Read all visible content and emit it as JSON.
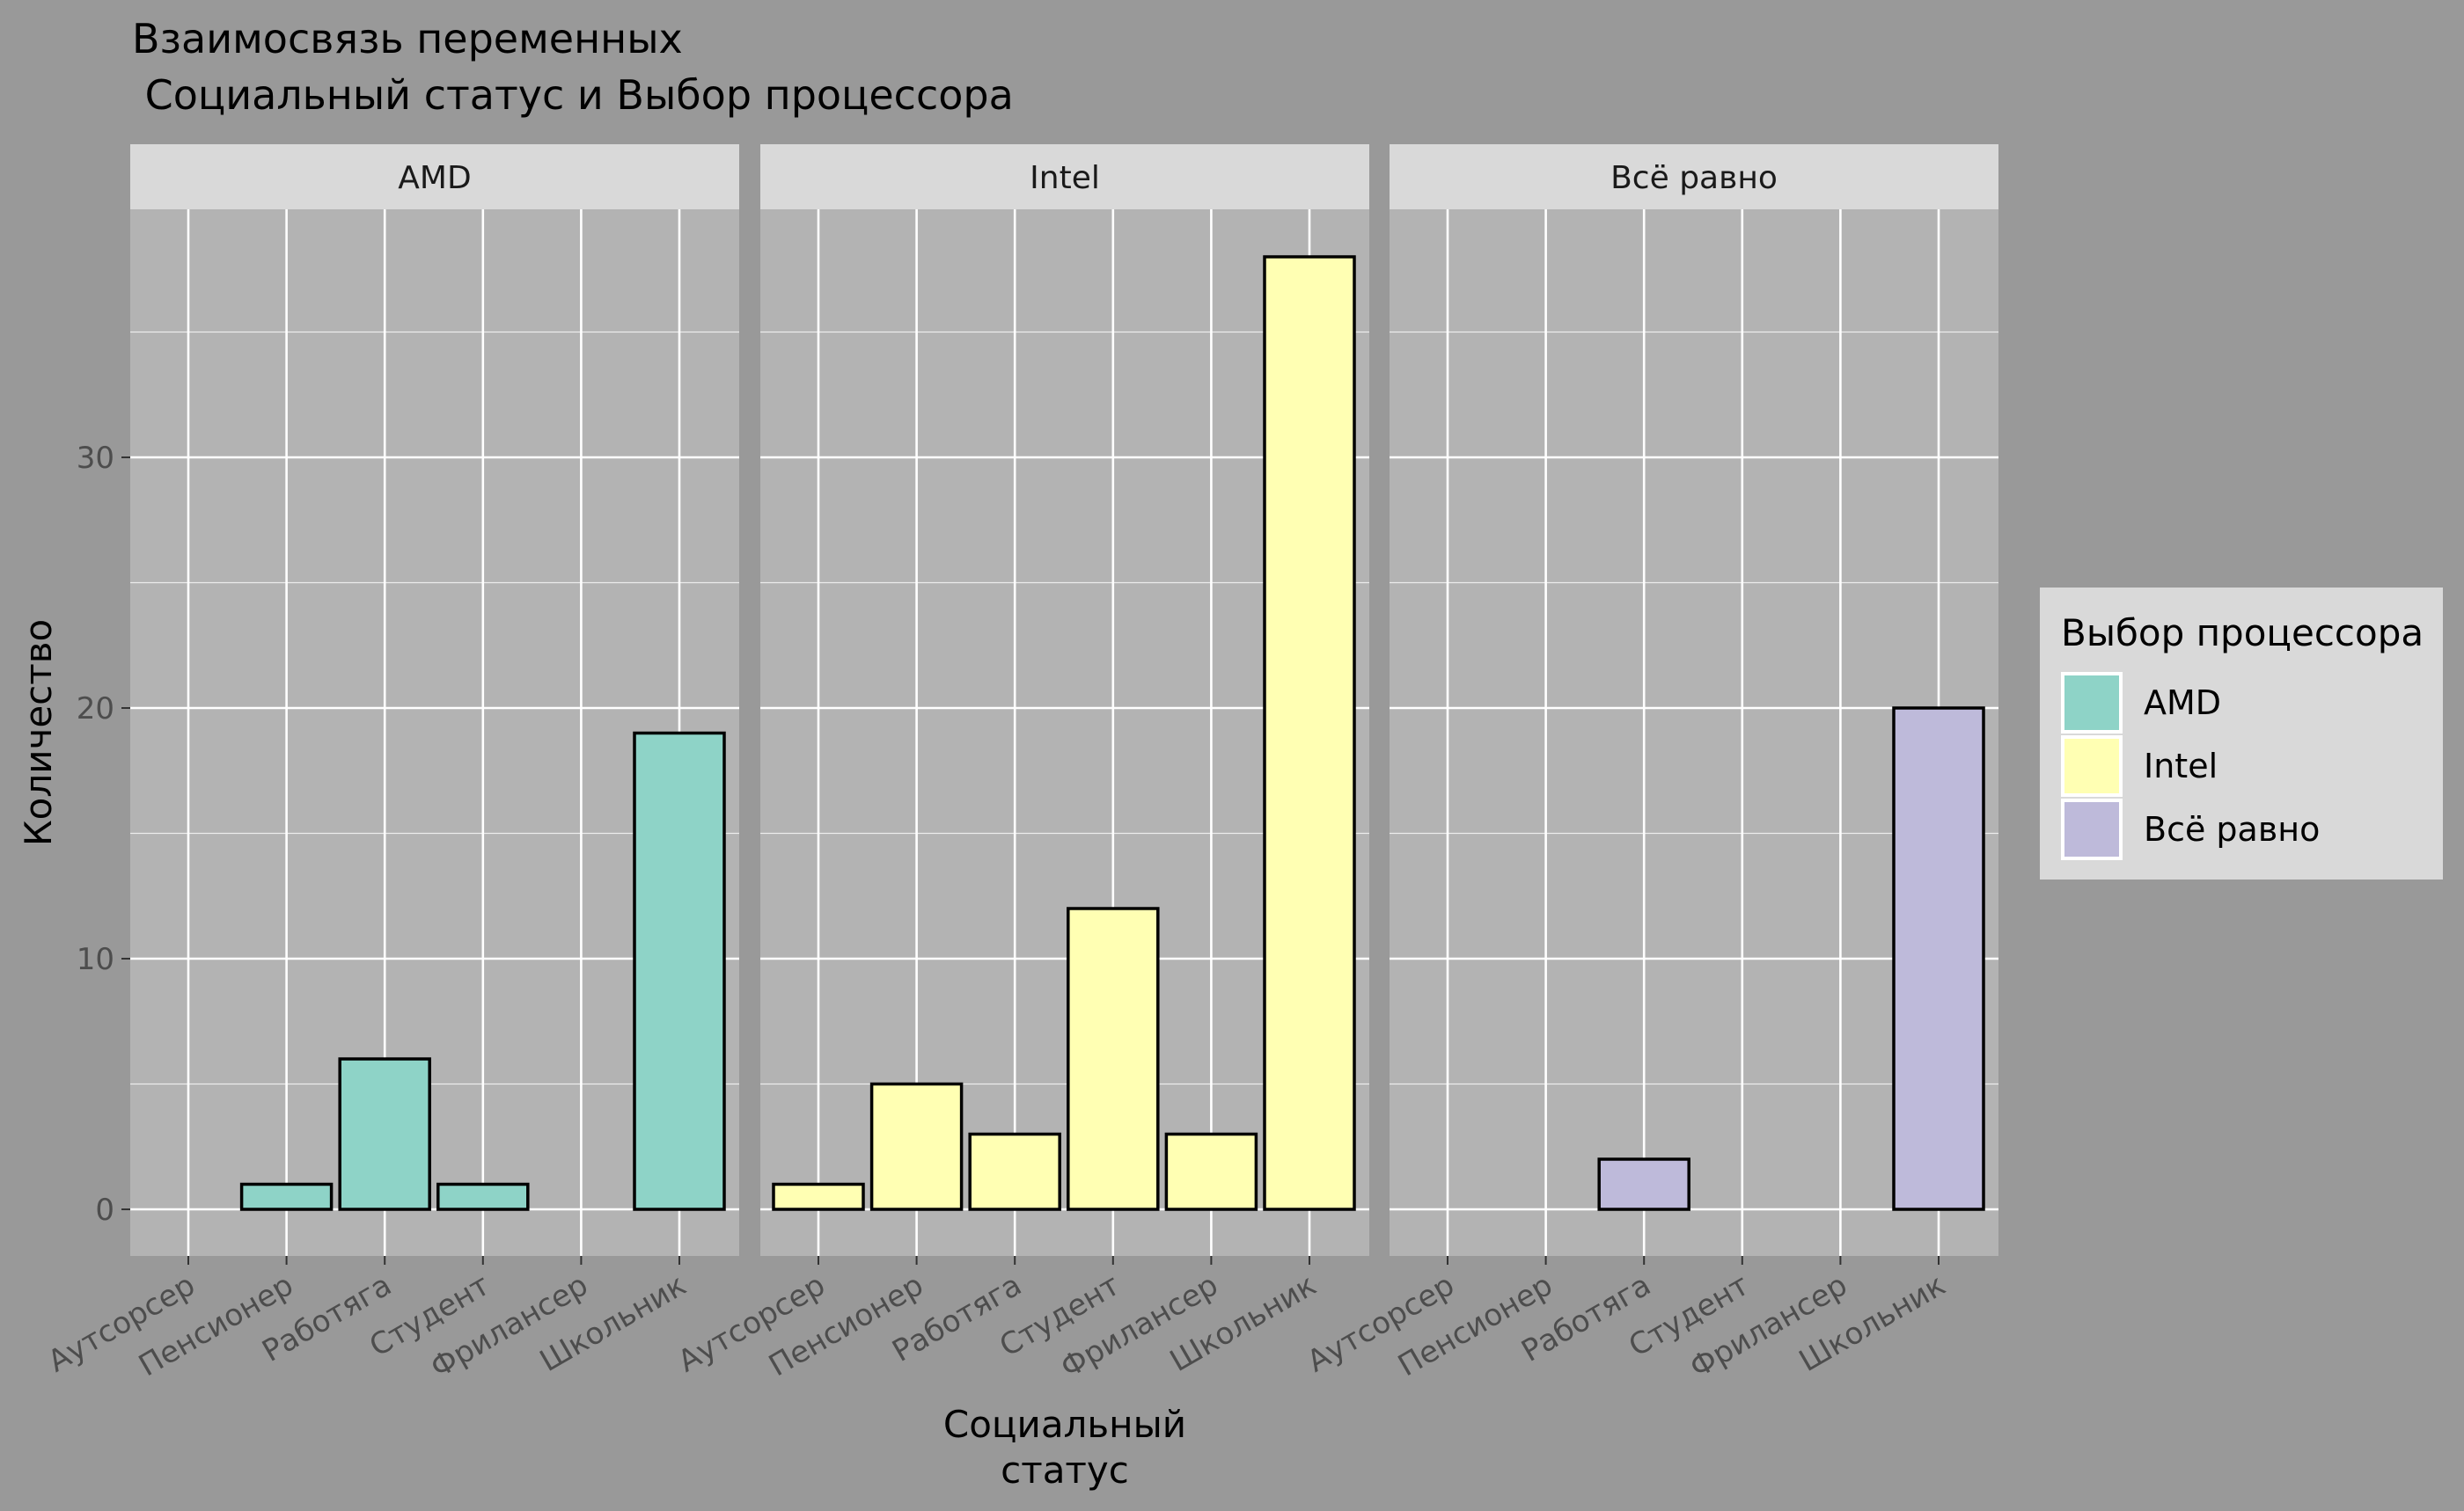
{
  "chart_data": {
    "type": "bar",
    "title_line1": "Взаимосвязь переменных",
    "title_line2": " Социальный статус и Выбор процессора",
    "xlabel_line1": "Социальный",
    "xlabel_line2": "статус",
    "ylabel": "Количество",
    "categories": [
      "Аутсорсер",
      "Пенсионер",
      "Работяга",
      "Студент",
      "Фрилансер",
      "Школьник"
    ],
    "ylim": [
      -2,
      40
    ],
    "yticks": [
      0,
      10,
      20,
      30
    ],
    "facets": [
      {
        "name": "AMD",
        "color": "#8ED3C7",
        "values": [
          0,
          1,
          6,
          1,
          0,
          19
        ]
      },
      {
        "name": "Intel",
        "color": "#FFFFB3",
        "values": [
          1,
          5,
          3,
          12,
          3,
          38
        ]
      },
      {
        "name": "Всё равно",
        "color": "#BEBADA",
        "values": [
          0,
          0,
          2,
          0,
          0,
          20
        ]
      }
    ],
    "legend": {
      "title": "Выбор процессора",
      "position": "right",
      "items": [
        {
          "label": "AMD",
          "color": "#8ED3C7"
        },
        {
          "label": "Intel",
          "color": "#FFFFB3"
        },
        {
          "label": "Всё равно",
          "color": "#BEBADA"
        }
      ]
    },
    "grid": true,
    "colors": {
      "page_bg": "#999999",
      "panel_bg": "#B3B3B3",
      "strip_bg": "#D9D9D9",
      "gridline": "#FFFFFF",
      "bar_outline": "#000000",
      "legend_bg": "#D9D9D9"
    }
  }
}
